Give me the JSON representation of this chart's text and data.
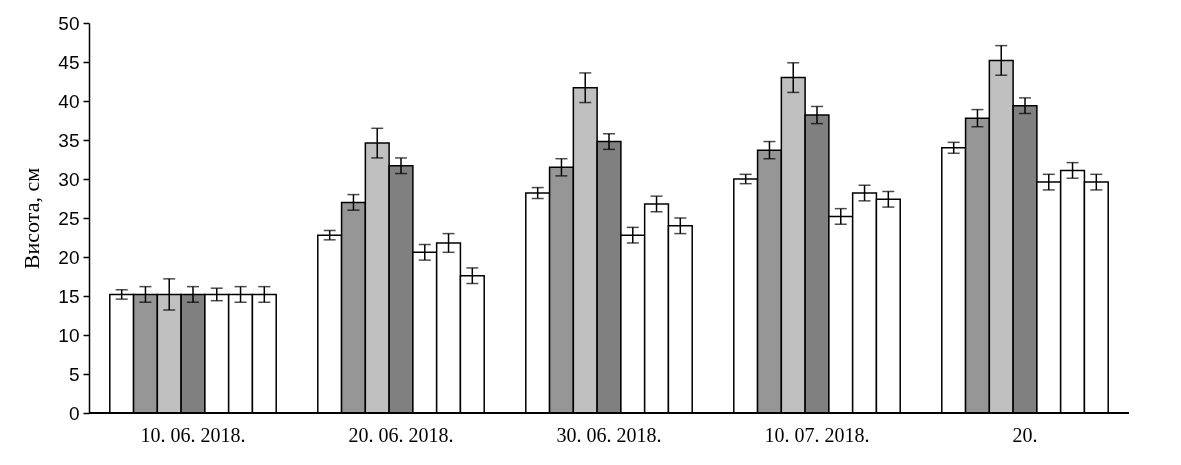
{
  "chart_data": {
    "type": "bar",
    "ylabel": "Висота, см",
    "categories": [
      "10. 06. 2018.",
      "20. 06. 2018.",
      "30. 06. 2018.",
      "10. 07. 2018.",
      "20."
    ],
    "ylim": [
      0,
      50
    ],
    "yticks": [
      0,
      5,
      10,
      15,
      20,
      25,
      30,
      35,
      40,
      45,
      50
    ],
    "grid": false,
    "legend": false,
    "series": [
      {
        "color": "#ffffff",
        "values": [
          15.2,
          22.8,
          28.2,
          30.0,
          34.0
        ],
        "errors": [
          0.6,
          0.6,
          0.7,
          0.6,
          0.7
        ]
      },
      {
        "color": "#969696",
        "values": [
          15.2,
          27.0,
          31.5,
          33.7,
          37.8
        ],
        "errors": [
          1.0,
          1.0,
          1.1,
          1.1,
          1.1
        ]
      },
      {
        "color": "#c0c0c0",
        "values": [
          15.2,
          34.6,
          41.7,
          43.0,
          45.2
        ],
        "errors": [
          2.0,
          1.9,
          1.9,
          1.9,
          1.9
        ]
      },
      {
        "color": "#808080",
        "values": [
          15.2,
          31.7,
          34.8,
          38.2,
          39.4
        ],
        "errors": [
          1.0,
          1.0,
          1.0,
          1.1,
          1.0
        ]
      },
      {
        "color": "#ffffff",
        "values": [
          15.2,
          20.6,
          22.8,
          25.2,
          29.6
        ],
        "errors": [
          0.8,
          1.0,
          1.0,
          1.0,
          1.0
        ]
      },
      {
        "color": "#ffffff",
        "values": [
          15.2,
          21.8,
          26.8,
          28.2,
          31.1
        ],
        "errors": [
          1.0,
          1.2,
          1.0,
          1.0,
          1.0
        ]
      },
      {
        "color": "#ffffff",
        "values": [
          15.2,
          17.6,
          24.0,
          27.4,
          29.6
        ],
        "errors": [
          1.0,
          1.0,
          1.0,
          1.0,
          1.0
        ]
      }
    ]
  }
}
